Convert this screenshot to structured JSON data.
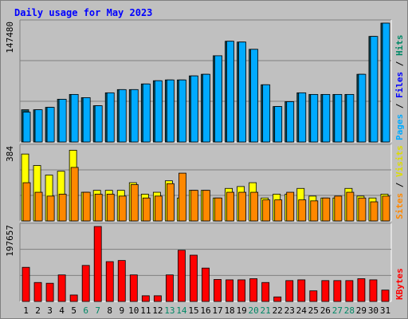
{
  "chart_data": {
    "type": "bar",
    "title": "Daily usage for May 2023",
    "categories": [
      "1",
      "2",
      "3",
      "4",
      "5",
      "6",
      "7",
      "8",
      "9",
      "10",
      "11",
      "12",
      "13",
      "14",
      "15",
      "16",
      "17",
      "18",
      "19",
      "20",
      "21",
      "22",
      "23",
      "24",
      "25",
      "26",
      "27",
      "28",
      "29",
      "30",
      "31"
    ],
    "weekend_days": [
      "6",
      "7",
      "13",
      "14",
      "20",
      "21",
      "27",
      "28"
    ],
    "panels": [
      {
        "id": "pages-files-hits",
        "max_label": "147480",
        "ylim": [
          0,
          147480
        ],
        "legend": [
          {
            "text": "Pages",
            "color": "#00aaff"
          },
          {
            "text": " / ",
            "color": "#000000"
          },
          {
            "text": "Files",
            "color": "#0000ff"
          },
          {
            "text": " / ",
            "color": "#000000"
          },
          {
            "text": "Hits",
            "color": "#008866"
          }
        ],
        "series": [
          {
            "name": "Hits",
            "color": "#0c4f5f",
            "values": [
              40000,
              40000,
              43000,
              53000,
              59000,
              55000,
              45000,
              61000,
              65000,
              65000,
              72000,
              76000,
              77000,
              77000,
              82000,
              84000,
              107000,
              125000,
              124000,
              115000,
              71000,
              44000,
              50000,
              61000,
              59000,
              59000,
              59000,
              59000,
              84000,
              131000,
              147480
            ]
          },
          {
            "name": "Pages",
            "color": "#00aaff",
            "values": [
              37000,
              40000,
              43000,
              53000,
              59000,
              55000,
              45000,
              61000,
              65000,
              65000,
              72000,
              76000,
              77000,
              77000,
              82000,
              84000,
              107000,
              125000,
              124000,
              115000,
              71000,
              44000,
              50000,
              61000,
              59000,
              59000,
              59000,
              59000,
              84000,
              131000,
              147480
            ]
          }
        ]
      },
      {
        "id": "visits-sites",
        "max_label": "384",
        "ylim": [
          0,
          384
        ],
        "legend": [
          {
            "text": "Sites",
            "color": "#ff8800"
          },
          {
            "text": " / ",
            "color": "#000000"
          },
          {
            "text": "Visits",
            "color": "#dddd00"
          }
        ],
        "series": [
          {
            "name": "Visits",
            "color": "#ffff00",
            "values": [
              350,
              290,
              240,
              260,
              370,
              150,
              160,
              160,
              160,
              200,
              140,
              150,
              210,
              120,
              160,
              160,
              120,
              170,
              180,
              200,
              120,
              140,
              140,
              170,
              130,
              120,
              120,
              170,
              130,
              120,
              140
            ]
          },
          {
            "name": "Sites",
            "color": "#ff8800",
            "values": [
              200,
              150,
              130,
              140,
              280,
              150,
              140,
              140,
              130,
              190,
              120,
              130,
              195,
              250,
              160,
              160,
              120,
              150,
              150,
              150,
              110,
              110,
              150,
              110,
              105,
              120,
              130,
              150,
              120,
              100,
              130
            ]
          }
        ]
      },
      {
        "id": "kbytes",
        "max_label": "197657",
        "ylim": [
          0,
          197657
        ],
        "legend": [
          {
            "text": "KBytes",
            "color": "#ff0000"
          }
        ],
        "series": [
          {
            "name": "KBytes",
            "color": "#ff0000",
            "values": [
              90000,
              50000,
              48000,
              70000,
              17000,
              95000,
              197657,
              105000,
              108000,
              70000,
              15000,
              15000,
              70000,
              135000,
              122000,
              88000,
              58000,
              57000,
              57000,
              60000,
              50000,
              12000,
              55000,
              57000,
              28000,
              55000,
              55000,
              55000,
              60000,
              57000,
              30000
            ]
          }
        ]
      }
    ]
  },
  "colors": {
    "background": "#c0c0c0",
    "weekday_label": "#000000",
    "weekend_label": "#008866",
    "title": "#0000ff"
  }
}
